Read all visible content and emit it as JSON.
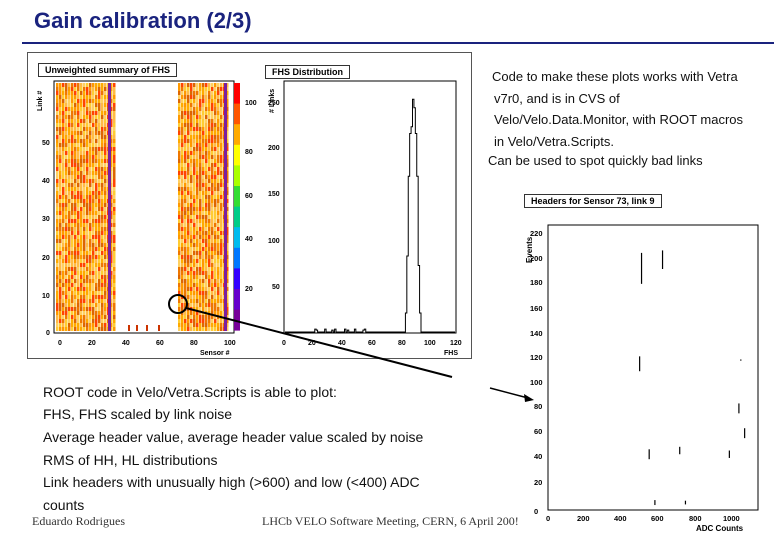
{
  "slide": {
    "title": "Gain calibration (2/3)"
  },
  "notes": [
    "Code to make these plots works with Vetra",
    "v7r0, and is in CVS of",
    "Velo/Velo.Data.Monitor, with ROOT macros",
    "in Velo/Vetra.Scripts.",
    "Can be used to spot quickly bad links"
  ],
  "body": {
    "heading": "ROOT code in Velo/Vetra.Scripts is able to plot:",
    "items": [
      "FHS, FHS scaled by link noise",
      "Average header value, average header value scaled by noise",
      "RMS of HH, HL distributions",
      "Link headers with unusually high (>600) and low (<400) ADC",
      "counts"
    ]
  },
  "footer": {
    "author": "Eduardo Rodrigues",
    "meeting": "LHCb VELO Software Meeting, CERN, 6 April 200!"
  },
  "plot_summary": {
    "caption": "Unweighted summary of FHS",
    "xlabel": "Sensor #",
    "ylabel": "Link #",
    "x_ticks": [
      "0",
      "20",
      "40",
      "60",
      "80",
      "100"
    ],
    "y_ticks": [
      "0",
      "10",
      "20",
      "30",
      "40",
      "50"
    ],
    "z_ticks": [
      "20",
      "40",
      "60",
      "80",
      "100"
    ]
  },
  "plot_fhs": {
    "caption": "FHS Distribution",
    "xlabel": "FHS",
    "ylabel": "# Links",
    "x_ticks": [
      "0",
      "20",
      "40",
      "60",
      "80",
      "100",
      "120"
    ],
    "y_ticks": [
      "0",
      "50",
      "100",
      "150",
      "200",
      "250"
    ]
  },
  "plot_headers": {
    "caption": "Headers for Sensor 73, link 9",
    "xlabel": "ADC Counts",
    "ylabel": "Events",
    "x_ticks": [
      "0",
      "200",
      "400",
      "600",
      "800",
      "1000"
    ],
    "y_ticks": [
      "0",
      "20",
      "40",
      "60",
      "80",
      "100",
      "120",
      "140",
      "160",
      "180",
      "200",
      "220"
    ]
  },
  "colors": {
    "title": "#1a237e",
    "arrow": "#000000"
  }
}
